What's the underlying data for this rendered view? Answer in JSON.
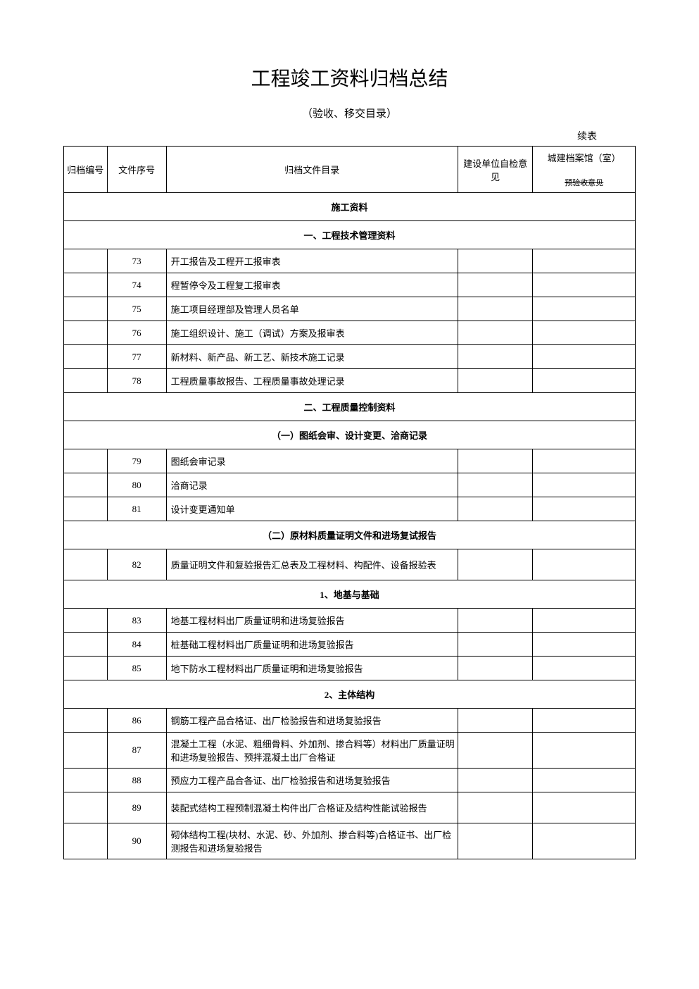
{
  "title": "工程竣工资料归档总结",
  "subtitle": "（验收、移交目录）",
  "continue_label": "续表",
  "headers": {
    "col1": "归档编号",
    "col2": "文件序号",
    "col3": "归档文件目录",
    "col4": "建设单位自检意见",
    "col5_top": "城建档案馆（室）",
    "col5_bottom": "预验收意见"
  },
  "sections": [
    {
      "type": "header",
      "label": "施工资料"
    },
    {
      "type": "header",
      "label": "一、工程技术管理资料"
    },
    {
      "type": "row",
      "seq": "73",
      "content": "开工报告及工程开工报审表"
    },
    {
      "type": "row",
      "seq": "74",
      "content": "程暂停令及工程复工报审表"
    },
    {
      "type": "row",
      "seq": "75",
      "content": "施工项目经理部及管理人员名单"
    },
    {
      "type": "row",
      "seq": "76",
      "content": "施工组织设计、施工（调试）方案及报审表"
    },
    {
      "type": "row",
      "seq": "77",
      "content": "新材料、新产品、新工艺、新技术施工记录"
    },
    {
      "type": "row",
      "seq": "78",
      "content": "工程质量事故报告、工程质量事故处理记录"
    },
    {
      "type": "header",
      "label": "二、工程质量控制资料"
    },
    {
      "type": "header",
      "label": "（一）图纸会审、设计变更、洽商记录"
    },
    {
      "type": "row",
      "seq": "79",
      "content": "图纸会审记录"
    },
    {
      "type": "row",
      "seq": "80",
      "content": "洽商记录"
    },
    {
      "type": "row",
      "seq": "81",
      "content": "设计变更通知单"
    },
    {
      "type": "header",
      "label": "（二）原材料质量证明文件和进场复试报告"
    },
    {
      "type": "row-tall",
      "seq": "82",
      "content": "质量证明文件和复验报告汇总表及工程材料、构配件、设备报验表"
    },
    {
      "type": "header",
      "label": "1、地基与基础"
    },
    {
      "type": "row",
      "seq": "83",
      "content": "地基工程材料出厂质量证明和进场复验报告"
    },
    {
      "type": "row",
      "seq": "84",
      "content": "桩基础工程材料出厂质量证明和进场复验报告"
    },
    {
      "type": "row",
      "seq": "85",
      "content": "地下防水工程材料出厂质量证明和进场复验报告"
    },
    {
      "type": "header",
      "label": "2、主体结构"
    },
    {
      "type": "row",
      "seq": "86",
      "content": "钢筋工程产品合格证、出厂检验报告和进场复验报告"
    },
    {
      "type": "row-tall",
      "seq": "87",
      "content": "混凝土工程（水泥、粗细骨料、外加剂、掺合料等）材料出厂质量证明和进场复验报告、预拌混凝土出厂合格证"
    },
    {
      "type": "row",
      "seq": "88",
      "content": "预应力工程产品合各证、出厂检验报告和进场复验报告"
    },
    {
      "type": "row-tall",
      "seq": "89",
      "content": "装配式结构工程预制混凝土构件出厂合格证及结构性能试验报告"
    },
    {
      "type": "row-tall",
      "seq": "90",
      "content": "砌体结构工程(块材、水泥、砂、外加剂、掺合料等)合格证书、出厂检测报告和进场复验报告"
    }
  ]
}
